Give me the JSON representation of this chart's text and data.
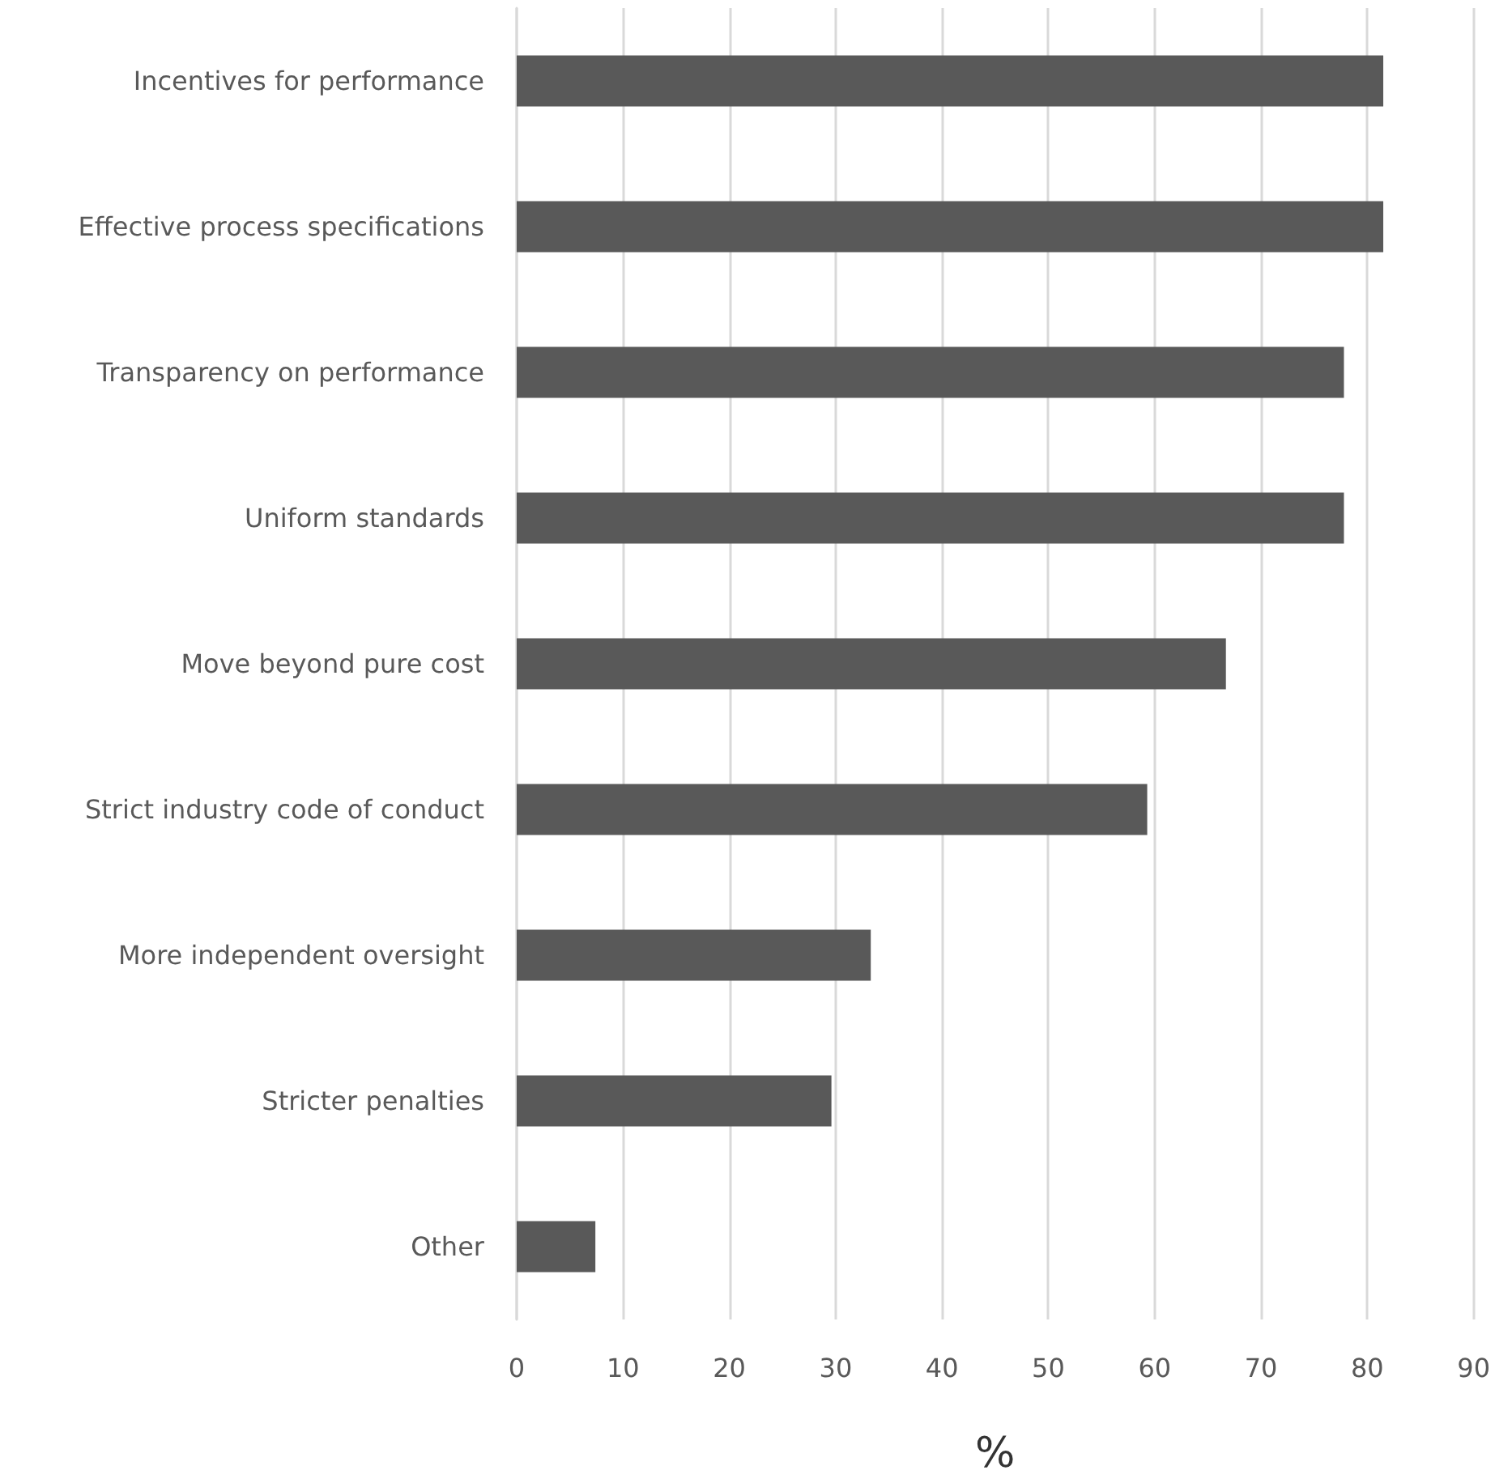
{
  "chart_data": {
    "type": "bar",
    "orientation": "horizontal",
    "xlabel": "%",
    "categories": [
      "Incentives for performance",
      "Effective process specifications",
      "Transparency on performance",
      "Uniform standards",
      "Move beyond pure cost",
      "Strict industry code of conduct",
      "More independent oversight",
      "Stricter penalties",
      "Other"
    ],
    "values": [
      81.5,
      81.5,
      77.8,
      77.8,
      66.7,
      59.3,
      33.3,
      29.6,
      7.4
    ],
    "color": "#595959",
    "xlim": [
      0,
      90
    ],
    "xticks": [
      0,
      10,
      20,
      30,
      40,
      50,
      60,
      70,
      80,
      90
    ],
    "grid": "x"
  }
}
